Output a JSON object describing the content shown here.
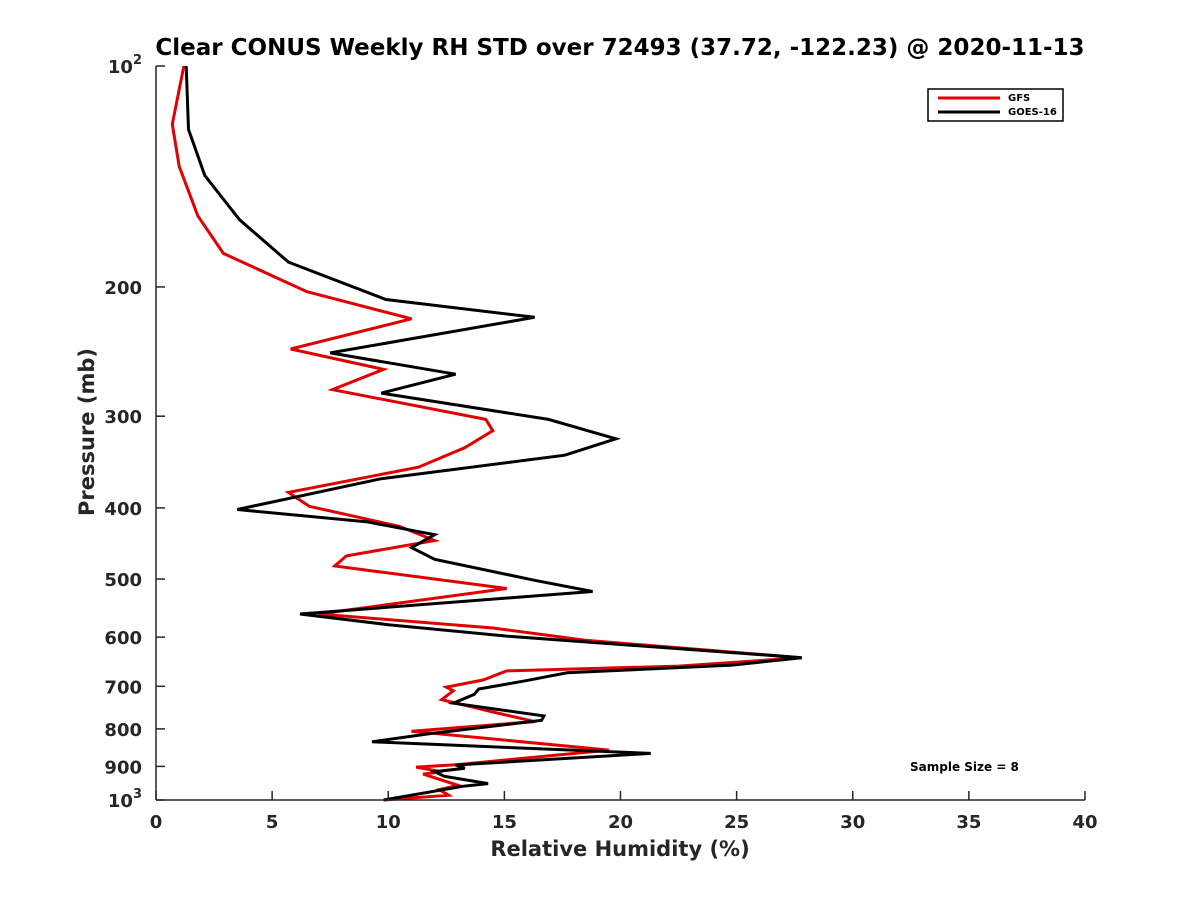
{
  "chart_data": {
    "type": "line",
    "title": "Clear CONUS Weekly RH STD over 72493 (37.72, -122.23) @ 2020-11-13",
    "xlabel": "Relative Humidity (%)",
    "ylabel": "Pressure (mb)",
    "xlim": [
      0,
      40
    ],
    "ylim": [
      100,
      1000
    ],
    "y_scale": "log",
    "y_reversed": true,
    "x_ticks": [
      0,
      5,
      10,
      15,
      20,
      25,
      30,
      35,
      40
    ],
    "x_tick_labels": [
      "0",
      "5",
      "10",
      "15",
      "20",
      "25",
      "30",
      "35",
      "40"
    ],
    "y_ticks": [
      100,
      200,
      300,
      400,
      500,
      600,
      700,
      800,
      900,
      1000
    ],
    "y_tick_labels": [
      {
        "base": "10",
        "exp": "2"
      },
      {
        "base": "200",
        "exp": ""
      },
      {
        "base": "300",
        "exp": ""
      },
      {
        "base": "400",
        "exp": ""
      },
      {
        "base": "500",
        "exp": ""
      },
      {
        "base": "600",
        "exp": ""
      },
      {
        "base": "700",
        "exp": ""
      },
      {
        "base": "800",
        "exp": ""
      },
      {
        "base": "900",
        "exp": ""
      },
      {
        "base": "10",
        "exp": "3"
      }
    ],
    "grid": false,
    "legend_position": "top-right",
    "annotation": "Sample Size = 8",
    "series": [
      {
        "name": "GFS",
        "color": "#e00000",
        "points": [
          [
            1.2,
            100
          ],
          [
            0.7,
            120
          ],
          [
            1.0,
            137
          ],
          [
            1.8,
            160
          ],
          [
            2.9,
            180
          ],
          [
            6.5,
            203
          ],
          [
            11.0,
            221
          ],
          [
            5.8,
            243
          ],
          [
            9.8,
            259
          ],
          [
            7.6,
            276
          ],
          [
            14.2,
            303
          ],
          [
            14.5,
            314
          ],
          [
            13.3,
            331
          ],
          [
            11.3,
            352
          ],
          [
            5.7,
            381
          ],
          [
            6.6,
            398
          ],
          [
            10.5,
            424
          ],
          [
            12.0,
            443
          ],
          [
            8.2,
            465
          ],
          [
            7.7,
            480
          ],
          [
            15.1,
            515
          ],
          [
            7.0,
            558
          ],
          [
            14.5,
            583
          ],
          [
            18.5,
            606
          ],
          [
            27.8,
            640
          ],
          [
            22.5,
            657
          ],
          [
            15.1,
            667
          ],
          [
            14.1,
            686
          ],
          [
            12.5,
            702
          ],
          [
            12.8,
            710
          ],
          [
            12.3,
            730
          ],
          [
            14.6,
            760
          ],
          [
            16.3,
            782
          ],
          [
            11.0,
            806
          ],
          [
            19.5,
            855
          ],
          [
            13.0,
            895
          ],
          [
            11.2,
            902
          ],
          [
            12.3,
            915
          ],
          [
            11.5,
            922
          ],
          [
            13.0,
            955
          ],
          [
            12.2,
            968
          ],
          [
            12.6,
            985
          ],
          [
            9.8,
            1000
          ]
        ]
      },
      {
        "name": "GOES-16",
        "color": "#000000",
        "points": [
          [
            1.3,
            100
          ],
          [
            1.4,
            122
          ],
          [
            2.1,
            141
          ],
          [
            3.6,
            162
          ],
          [
            5.7,
            185
          ],
          [
            9.9,
            208
          ],
          [
            16.3,
            220
          ],
          [
            7.5,
            246
          ],
          [
            12.9,
            263
          ],
          [
            9.7,
            279
          ],
          [
            16.9,
            303
          ],
          [
            19.8,
            322
          ],
          [
            17.6,
            339
          ],
          [
            9.7,
            365
          ],
          [
            3.5,
            402
          ],
          [
            9.1,
            418
          ],
          [
            12.0,
            435
          ],
          [
            11.0,
            453
          ],
          [
            12.0,
            470
          ],
          [
            16.3,
            502
          ],
          [
            18.8,
            520
          ],
          [
            6.2,
            558
          ],
          [
            10.0,
            577
          ],
          [
            15.1,
            598
          ],
          [
            27.8,
            640
          ],
          [
            24.8,
            655
          ],
          [
            17.7,
            671
          ],
          [
            15.9,
            688
          ],
          [
            13.9,
            706
          ],
          [
            13.7,
            718
          ],
          [
            12.8,
            738
          ],
          [
            16.7,
            768
          ],
          [
            16.6,
            779
          ],
          [
            11.8,
            812
          ],
          [
            9.3,
            833
          ],
          [
            21.3,
            864
          ],
          [
            12.9,
            896
          ],
          [
            13.3,
            905
          ],
          [
            12.0,
            915
          ],
          [
            12.4,
            928
          ],
          [
            14.3,
            950
          ],
          [
            13.2,
            958
          ],
          [
            9.8,
            1000
          ]
        ]
      }
    ]
  }
}
